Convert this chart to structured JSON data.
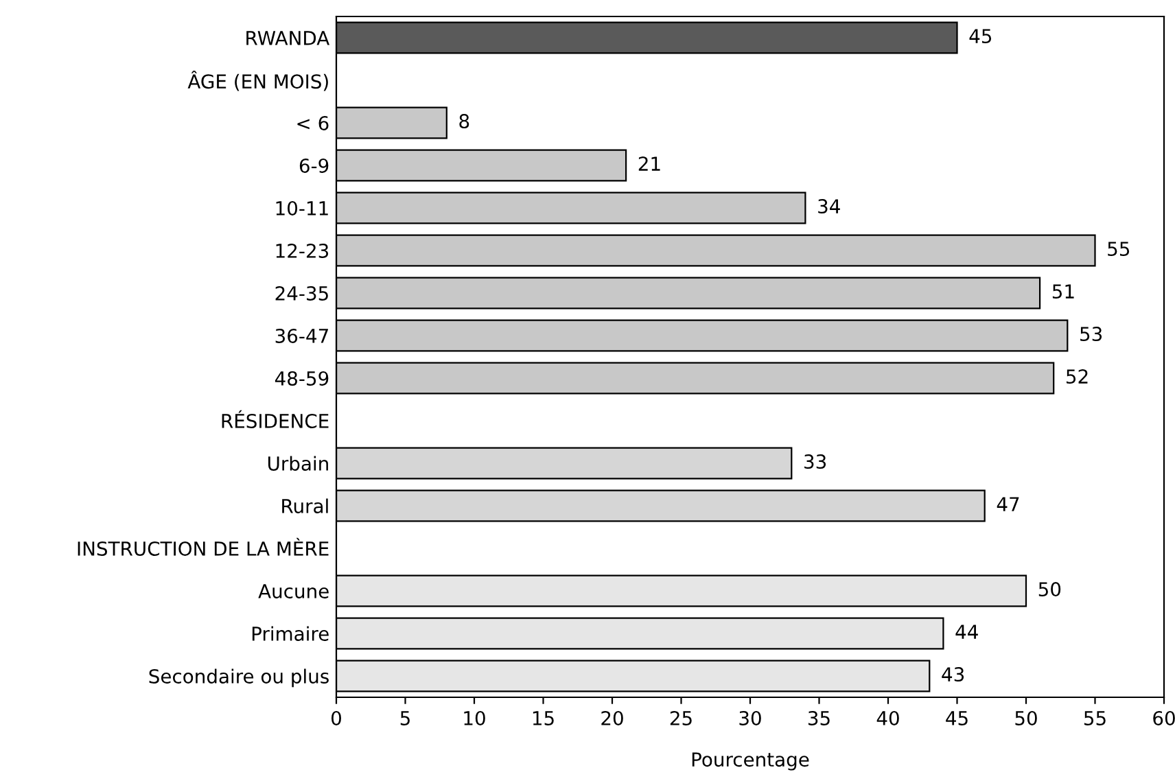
{
  "chart_data": {
    "type": "bar",
    "orientation": "horizontal",
    "xlabel": "Pourcentage",
    "categories": [
      "RWANDA",
      "ÂGE (EN MOIS)",
      "< 6",
      "6-9",
      "10-11",
      "12-23",
      "24-35",
      "36-47",
      "48-59",
      "RÉSIDENCE",
      "Urbain",
      "Rural",
      "INSTRUCTION DE LA MÈRE",
      "Aucune",
      "Primaire",
      "Secondaire ou plus"
    ],
    "values": [
      45,
      null,
      8,
      21,
      34,
      55,
      51,
      53,
      52,
      null,
      33,
      47,
      null,
      50,
      44,
      43
    ],
    "colors": [
      "#5a5a5a",
      null,
      "#c8c8c8",
      "#c8c8c8",
      "#c8c8c8",
      "#c8c8c8",
      "#c8c8c8",
      "#c8c8c8",
      "#c8c8c8",
      null,
      "#d6d6d6",
      "#d6d6d6",
      null,
      "#e6e6e6",
      "#e6e6e6",
      "#e6e6e6"
    ],
    "xlim": [
      0,
      60
    ],
    "xticks": [
      0,
      5,
      10,
      15,
      20,
      25,
      30,
      35,
      40,
      45,
      50,
      55,
      60
    ],
    "data_labels": true,
    "grid": false,
    "legend": false
  }
}
